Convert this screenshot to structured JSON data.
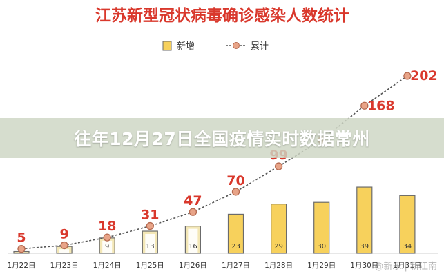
{
  "overlay_title": "往年12月27日全国疫情实时数据常州",
  "watermark": "@新乐 | 新江南",
  "colors": {
    "bar_fill": "#f7d15c",
    "bar_fill_light": "#f3e7b6",
    "bar_border": "#6b6b6b",
    "line": "#555555",
    "marker_fill": "#e8a488",
    "marker_stroke": "#b56a50",
    "label_red": "#d9382c",
    "title_red": "#d9382c"
  },
  "chart_data": {
    "type": "bar",
    "title": "江苏新型冠状病毒确诊感染人数统计",
    "legend_position": "top-center",
    "categories": [
      "1月22日",
      "1月23日",
      "1月24日",
      "1月25日",
      "1月26日",
      "1月27日",
      "1月28日",
      "1月29日",
      "1月30日",
      "1月31日"
    ],
    "series": [
      {
        "name": "新增",
        "type": "bar",
        "values": [
          1,
          4,
          9,
          13,
          16,
          23,
          29,
          30,
          39,
          34
        ]
      },
      {
        "name": "累计",
        "type": "line",
        "values": [
          5,
          9,
          18,
          31,
          47,
          70,
          99,
          129,
          168,
          202
        ]
      }
    ],
    "value_labels_shown": {
      "bar": [
        "",
        "",
        "9",
        "13",
        "16",
        "23",
        "29",
        "30",
        "39",
        "34"
      ],
      "line": [
        "5",
        "9",
        "18",
        "31",
        "47",
        "70",
        "99",
        "",
        "168",
        "202"
      ]
    },
    "ylim_line": [
      0,
      220
    ],
    "ylim_bar": [
      0,
      170
    ],
    "grid": false
  }
}
